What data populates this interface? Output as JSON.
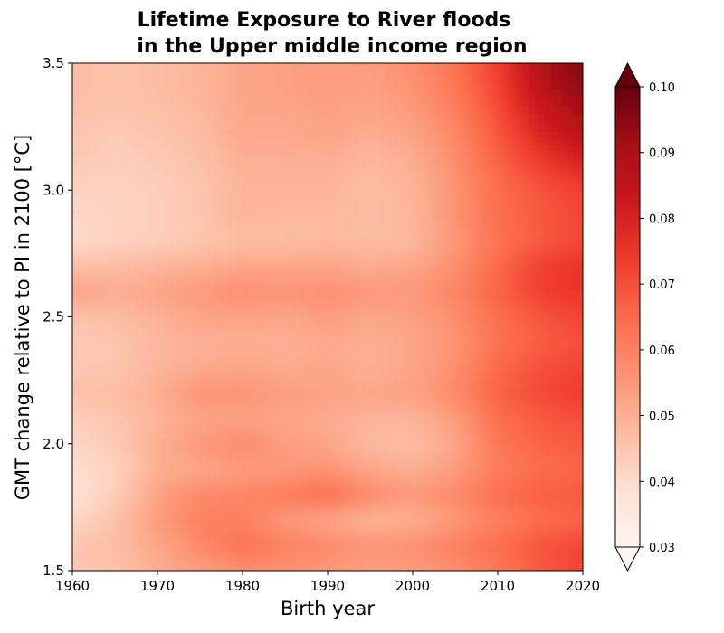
{
  "chart_data": {
    "type": "heatmap",
    "title_lines": [
      "Lifetime Exposure to River floods",
      "in the Upper middle income region"
    ],
    "xlabel": "Birth year",
    "ylabel": "GMT change relative to PI in 2100 [°C]",
    "xlim": [
      1960,
      2020
    ],
    "ylim": [
      1.5,
      3.5
    ],
    "x_ticks": [
      "1960",
      "1970",
      "1980",
      "1990",
      "2000",
      "2010",
      "2020"
    ],
    "y_ticks": [
      "1.5",
      "2.0",
      "2.5",
      "3.0",
      "3.5"
    ],
    "x": [
      1960,
      1965,
      1970,
      1975,
      1980,
      1985,
      1990,
      1995,
      2000,
      2005,
      2010,
      2015,
      2020
    ],
    "y": [
      1.5,
      1.6,
      1.7,
      1.8,
      1.9,
      2.0,
      2.1,
      2.2,
      2.3,
      2.4,
      2.5,
      2.6,
      2.7,
      2.8,
      2.9,
      3.0,
      3.1,
      3.2,
      3.3,
      3.4,
      3.5
    ],
    "z": [
      [
        0.045,
        0.046,
        0.05,
        0.054,
        0.057,
        0.056,
        0.055,
        0.053,
        0.054,
        0.057,
        0.062,
        0.068,
        0.072
      ],
      [
        0.045,
        0.047,
        0.052,
        0.058,
        0.063,
        0.06,
        0.058,
        0.056,
        0.057,
        0.06,
        0.064,
        0.069,
        0.072
      ],
      [
        0.041,
        0.046,
        0.054,
        0.06,
        0.06,
        0.055,
        0.052,
        0.049,
        0.05,
        0.055,
        0.06,
        0.064,
        0.066
      ],
      [
        0.038,
        0.043,
        0.053,
        0.058,
        0.059,
        0.061,
        0.064,
        0.058,
        0.055,
        0.058,
        0.064,
        0.067,
        0.068
      ],
      [
        0.039,
        0.042,
        0.05,
        0.052,
        0.054,
        0.055,
        0.056,
        0.052,
        0.05,
        0.054,
        0.061,
        0.064,
        0.066
      ],
      [
        0.041,
        0.044,
        0.05,
        0.055,
        0.058,
        0.054,
        0.052,
        0.048,
        0.047,
        0.052,
        0.062,
        0.066,
        0.068
      ],
      [
        0.043,
        0.045,
        0.049,
        0.052,
        0.053,
        0.052,
        0.051,
        0.049,
        0.049,
        0.054,
        0.064,
        0.068,
        0.07
      ],
      [
        0.046,
        0.047,
        0.05,
        0.056,
        0.056,
        0.054,
        0.053,
        0.052,
        0.053,
        0.058,
        0.066,
        0.071,
        0.074
      ],
      [
        0.045,
        0.045,
        0.049,
        0.051,
        0.052,
        0.051,
        0.052,
        0.05,
        0.052,
        0.057,
        0.065,
        0.07,
        0.072
      ],
      [
        0.044,
        0.045,
        0.048,
        0.05,
        0.05,
        0.05,
        0.051,
        0.05,
        0.052,
        0.056,
        0.063,
        0.067,
        0.07
      ],
      [
        0.046,
        0.047,
        0.05,
        0.052,
        0.053,
        0.052,
        0.054,
        0.052,
        0.053,
        0.057,
        0.064,
        0.069,
        0.072
      ],
      [
        0.053,
        0.051,
        0.052,
        0.055,
        0.057,
        0.056,
        0.057,
        0.055,
        0.055,
        0.059,
        0.066,
        0.073,
        0.075
      ],
      [
        0.047,
        0.047,
        0.049,
        0.05,
        0.052,
        0.052,
        0.052,
        0.051,
        0.052,
        0.057,
        0.065,
        0.073,
        0.076
      ],
      [
        0.04,
        0.042,
        0.043,
        0.045,
        0.047,
        0.047,
        0.048,
        0.047,
        0.048,
        0.055,
        0.063,
        0.068,
        0.071
      ],
      [
        0.041,
        0.042,
        0.043,
        0.045,
        0.049,
        0.048,
        0.048,
        0.047,
        0.049,
        0.056,
        0.064,
        0.068,
        0.072
      ],
      [
        0.042,
        0.042,
        0.043,
        0.045,
        0.049,
        0.049,
        0.049,
        0.047,
        0.049,
        0.056,
        0.064,
        0.069,
        0.073
      ],
      [
        0.044,
        0.043,
        0.044,
        0.046,
        0.05,
        0.05,
        0.05,
        0.048,
        0.05,
        0.057,
        0.066,
        0.073,
        0.079
      ],
      [
        0.045,
        0.044,
        0.045,
        0.047,
        0.051,
        0.051,
        0.052,
        0.05,
        0.052,
        0.058,
        0.068,
        0.078,
        0.085
      ],
      [
        0.046,
        0.045,
        0.046,
        0.048,
        0.052,
        0.052,
        0.053,
        0.052,
        0.054,
        0.06,
        0.07,
        0.082,
        0.09
      ],
      [
        0.047,
        0.046,
        0.047,
        0.049,
        0.052,
        0.053,
        0.054,
        0.053,
        0.056,
        0.062,
        0.072,
        0.086,
        0.095
      ],
      [
        0.047,
        0.046,
        0.047,
        0.049,
        0.052,
        0.053,
        0.054,
        0.054,
        0.057,
        0.063,
        0.073,
        0.088,
        0.097
      ]
    ],
    "colorbar": {
      "vmin": 0.03,
      "vmax": 0.1,
      "ticks": [
        "0.03",
        "0.04",
        "0.05",
        "0.06",
        "0.07",
        "0.08",
        "0.09",
        "0.10"
      ],
      "extend": "both",
      "colormap": [
        "#fff5f0",
        "#fee0d2",
        "#fcbba1",
        "#fc9272",
        "#fb6a4a",
        "#ef3b2c",
        "#cb181d",
        "#a50f15",
        "#67000d"
      ]
    },
    "grid": false
  }
}
